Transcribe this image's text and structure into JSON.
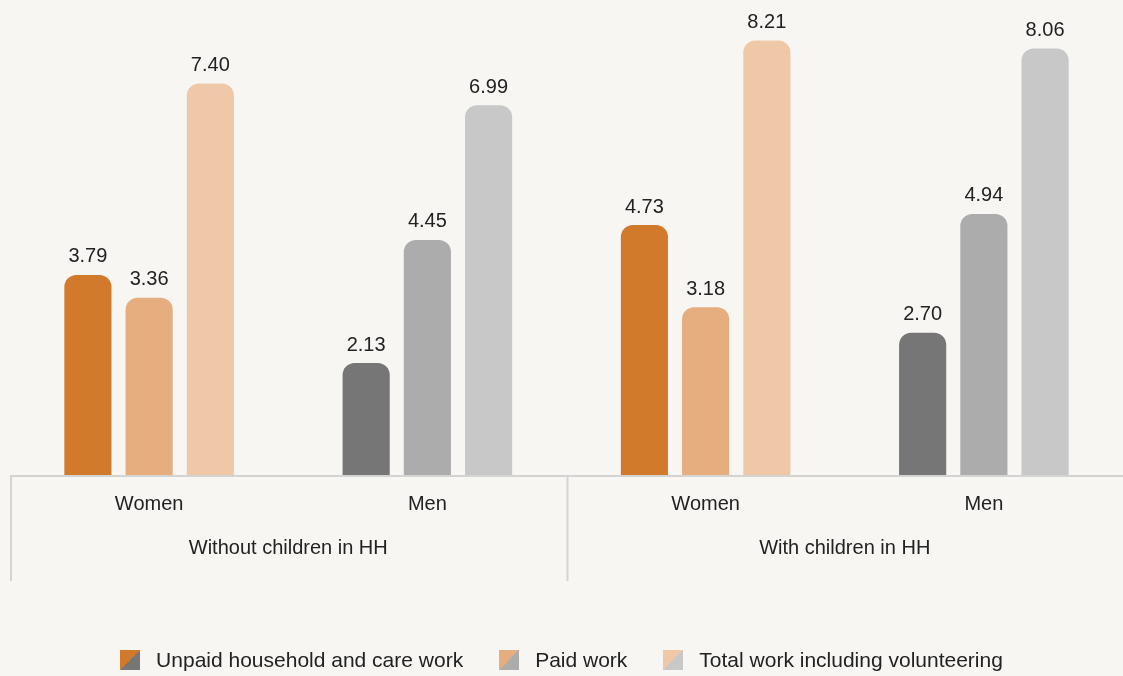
{
  "chart_data": {
    "type": "bar",
    "categories": [
      "Women",
      "Men",
      "Women",
      "Men"
    ],
    "annotations": [
      "Without children in HH",
      "With children in HH"
    ],
    "series": [
      {
        "name": "Unpaid household and care work",
        "colors": [
          "#d27a2c",
          "#767676",
          "#d27a2c",
          "#767676"
        ],
        "values": [
          3.79,
          2.13,
          4.73,
          2.7
        ],
        "value_labels": [
          "3.79",
          "2.13",
          "4.73",
          "2.70"
        ]
      },
      {
        "name": "Paid work",
        "colors": [
          "#e6ad7e",
          "#acacac",
          "#e6ad7e",
          "#acacac"
        ],
        "values": [
          3.36,
          4.45,
          3.18,
          4.94
        ],
        "value_labels": [
          "3.36",
          "4.45",
          "3.18",
          "4.94"
        ]
      },
      {
        "name": "Total work including volunteering",
        "colors": [
          "#efc9a7",
          "#c8c8c8",
          "#efc9a7",
          "#c8c8c8"
        ],
        "values": [
          7.4,
          6.99,
          8.21,
          8.06
        ],
        "value_labels": [
          "7.40",
          "6.99",
          "8.21",
          "8.06"
        ]
      }
    ],
    "legend": "bottom",
    "grid": false
  }
}
